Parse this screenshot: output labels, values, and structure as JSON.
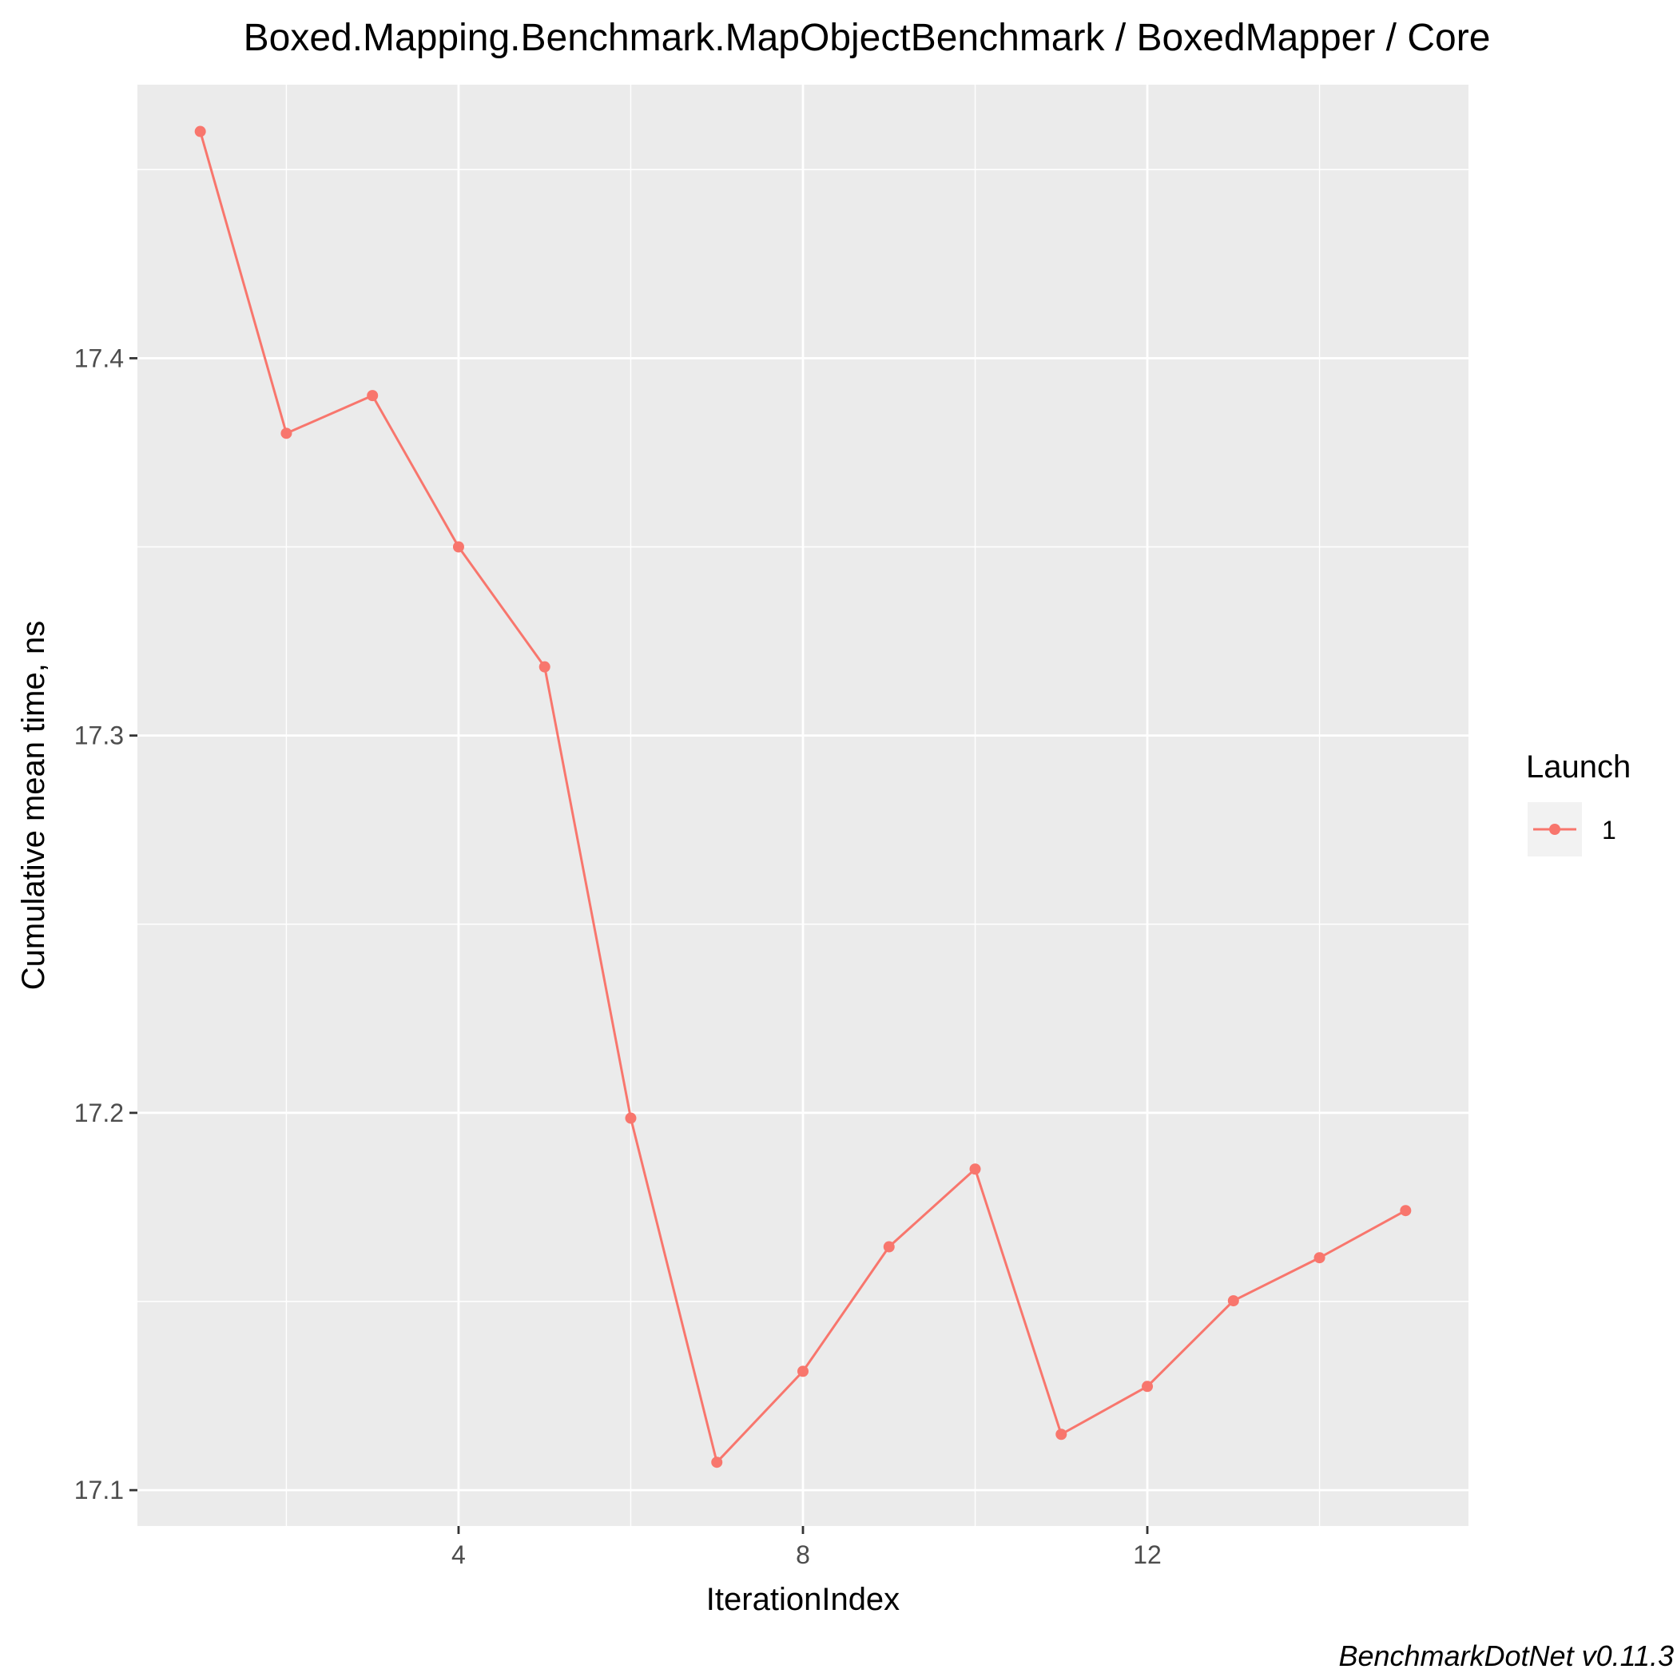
{
  "chart_data": {
    "type": "line",
    "title": "Boxed.Mapping.Benchmark.MapObjectBenchmark / BoxedMapper / Core",
    "xlabel": "IterationIndex",
    "ylabel": "Cumulative mean time, ns",
    "caption": "BenchmarkDotNet v0.11.3",
    "xlim": [
      0.27,
      15.73
    ],
    "ylim": [
      17.0905,
      17.4725
    ],
    "x_ticks": [
      4,
      8,
      12
    ],
    "x_tick_labels": [
      "4",
      "8",
      "12"
    ],
    "y_ticks": [
      17.1,
      17.2,
      17.3,
      17.4
    ],
    "y_tick_labels": [
      "17.1",
      "17.2",
      "17.3",
      "17.4"
    ],
    "grid": true,
    "legend": {
      "title": "Launch",
      "position": "right"
    },
    "series": [
      {
        "name": "1",
        "color": "#F8766D",
        "x": [
          1,
          2,
          3,
          4,
          5,
          6,
          7,
          8,
          9,
          10,
          11,
          12,
          13,
          14,
          15
        ],
        "values": [
          17.4601,
          17.3801,
          17.3901,
          17.35,
          17.3182,
          17.1986,
          17.1074,
          17.1315,
          17.1645,
          17.1851,
          17.1148,
          17.1275,
          17.1502,
          17.1616,
          17.1741
        ]
      }
    ]
  }
}
